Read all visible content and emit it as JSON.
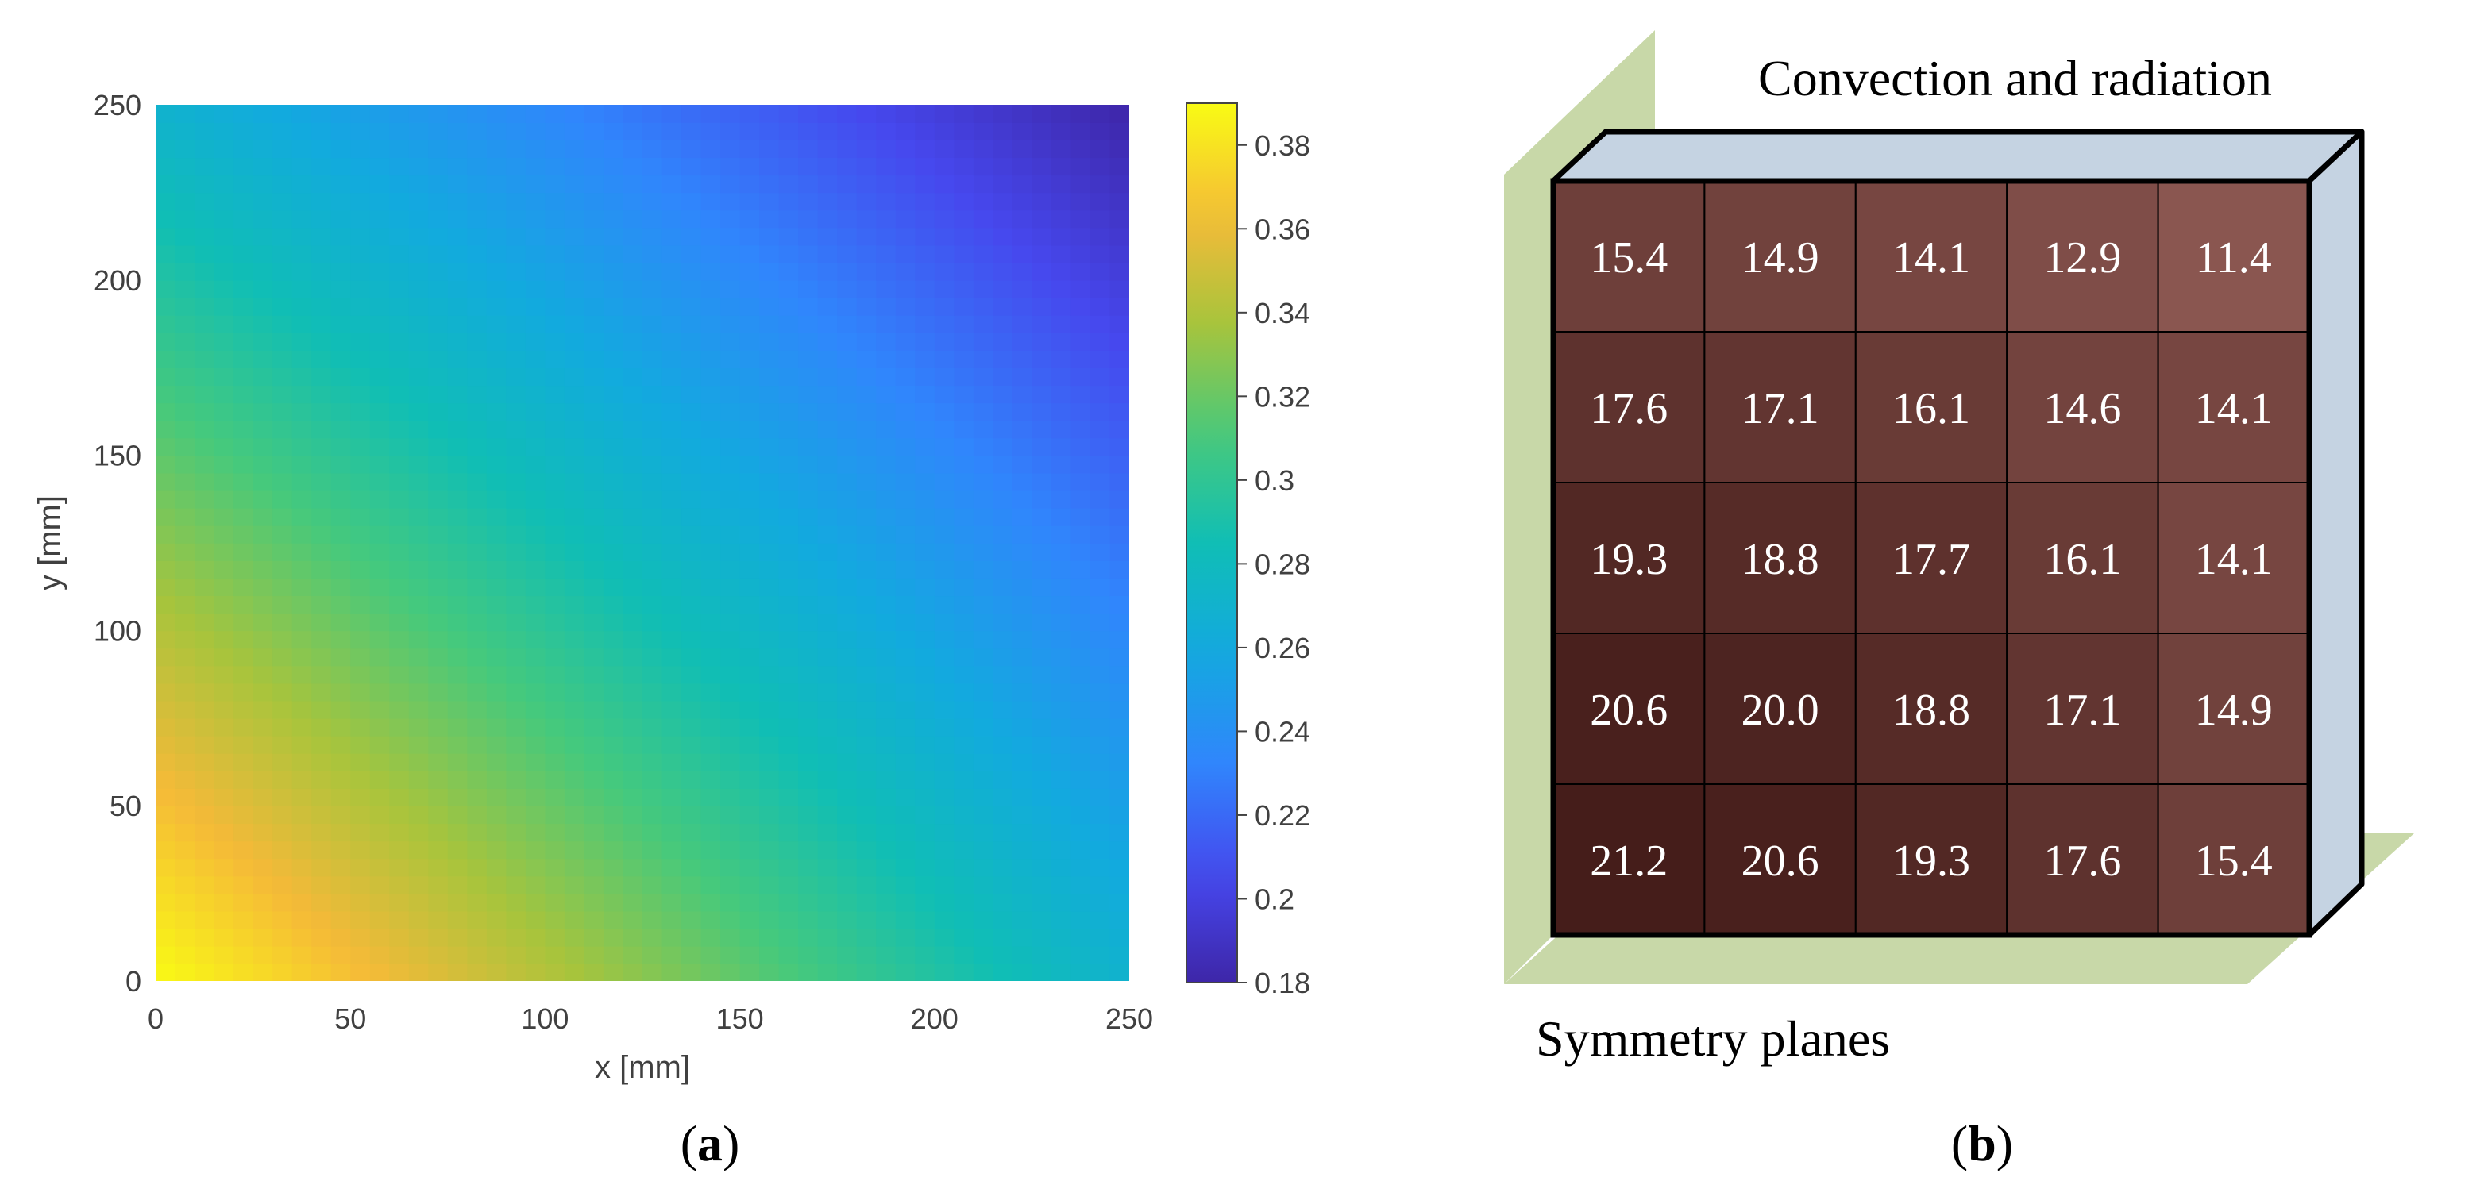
{
  "chart_data": [
    {
      "type": "heatmap",
      "panel_label": "(a)",
      "xlabel": "x [mm]",
      "ylabel": "y [mm]",
      "xlim": [
        0,
        250
      ],
      "ylim": [
        0,
        250
      ],
      "xticks": [
        0,
        50,
        100,
        150,
        200,
        250
      ],
      "yticks": [
        0,
        50,
        100,
        150,
        200,
        250
      ],
      "colorbar": {
        "min": 0.18,
        "max": 0.39,
        "ticks": [
          0.18,
          0.2,
          0.22,
          0.24,
          0.26,
          0.28,
          0.3,
          0.32,
          0.34,
          0.36,
          0.38
        ],
        "tick_labels": [
          "0.18",
          "0.2",
          "0.22",
          "0.24",
          "0.26",
          "0.28",
          "0.3",
          "0.32",
          "0.34",
          "0.36",
          "0.38"
        ],
        "colormap": "parula"
      },
      "corner_values": {
        "x0_y0": 0.39,
        "x250_y0": 0.27,
        "x0_y250": 0.27,
        "x250_y250": 0.18
      }
    },
    {
      "type": "table",
      "panel_label": "(b)",
      "top_label": "Convection and radiation",
      "bottom_label": "Symmetry planes",
      "rows": [
        [
          "15.4",
          "14.9",
          "14.1",
          "12.9",
          "11.4"
        ],
        [
          "17.6",
          "17.1",
          "16.1",
          "14.6",
          "14.1"
        ],
        [
          "19.3",
          "18.8",
          "17.7",
          "16.1",
          "14.1"
        ],
        [
          "20.6",
          "20.0",
          "18.8",
          "17.1",
          "14.9"
        ],
        [
          "21.2",
          "20.6",
          "19.3",
          "17.6",
          "15.4"
        ]
      ],
      "colors": {
        "cell_dark": "#451d1a",
        "cell_light": "#8a5650",
        "side_face": "#c5d3e2",
        "top_face": "#c5d3e2",
        "plane": "#c8d8a8"
      }
    }
  ]
}
